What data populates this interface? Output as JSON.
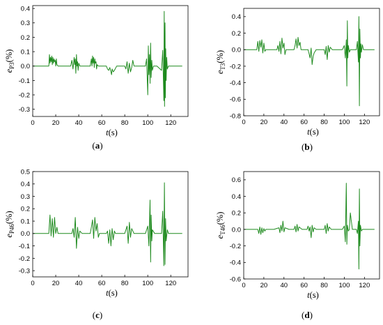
{
  "chart_data": [
    {
      "panel": "a",
      "type": "line",
      "caption": "(a)",
      "ylabel_main": "e",
      "ylabel_sub": "P3",
      "ylabel_unit": "(%)",
      "xlabel_main": "t",
      "xlabel_unit": "(s)",
      "xlim": [
        0,
        135
      ],
      "ylim": [
        -0.35,
        0.42
      ],
      "xticks": [
        0,
        20,
        40,
        60,
        80,
        100,
        120
      ],
      "yticks": [
        -0.3,
        -0.2,
        -0.1,
        0.0,
        0.1,
        0.2,
        0.3,
        0.4
      ],
      "ytick_labels": [
        "-0.3",
        "-0.2",
        "-0.1",
        "0.0",
        "0.1",
        "0.2",
        "0.3",
        "0.4"
      ],
      "color": "#1e8a1e",
      "x": [
        0,
        14,
        14.5,
        15,
        15.5,
        16,
        16.5,
        17,
        17.5,
        18,
        18.5,
        19,
        19.5,
        20,
        20.5,
        21,
        22,
        23,
        26,
        27,
        30,
        33,
        34,
        35,
        36,
        36.5,
        37,
        37.5,
        38,
        38.5,
        39,
        39.5,
        40,
        41,
        45,
        50,
        51,
        51.5,
        52,
        52.5,
        53,
        53.5,
        54,
        54.5,
        55,
        55.5,
        56,
        57,
        60,
        64,
        65,
        66,
        67,
        68,
        68.5,
        69,
        70,
        71,
        73,
        80,
        81,
        82,
        83,
        84,
        85,
        86,
        87,
        88,
        90,
        98,
        99,
        100,
        100.5,
        101,
        101.5,
        102,
        102.5,
        103,
        103.5,
        104,
        105,
        108,
        112,
        113,
        114,
        114.3,
        114.6,
        115,
        115.3,
        115.6,
        116,
        116.5,
        117,
        118,
        120,
        130
      ],
      "y": [
        0,
        0,
        0.08,
        0.02,
        0.06,
        0.03,
        0.07,
        0.01,
        0.06,
        0.02,
        0.05,
        0.03,
        0.04,
        0.0,
        0.05,
        0.01,
        0.0,
        0.0,
        0.0,
        0.0,
        0.0,
        0.0,
        0.04,
        -0.02,
        0.06,
        0.01,
        0.05,
        -0.05,
        0.08,
        0.0,
        0.03,
        -0.03,
        0.02,
        0.0,
        0.0,
        0.0,
        0.05,
        0.0,
        0.07,
        0.02,
        0.06,
        -0.01,
        0.05,
        0.02,
        0.03,
        -0.02,
        0.01,
        0.0,
        0.0,
        0.0,
        -0.02,
        -0.03,
        -0.01,
        -0.04,
        -0.06,
        -0.02,
        -0.04,
        -0.03,
        0.0,
        0.0,
        -0.02,
        0.03,
        -0.05,
        0.02,
        -0.04,
        -0.01,
        0.04,
        0.0,
        0.0,
        0.0,
        0.05,
        -0.2,
        0.14,
        -0.06,
        0.08,
        -0.12,
        0.16,
        -0.08,
        0.04,
        -0.03,
        0.0,
        0.0,
        -0.03,
        0.11,
        -0.24,
        0.38,
        -0.28,
        0.3,
        -0.22,
        0.12,
        -0.1,
        0.06,
        -0.02,
        0.0,
        0.0,
        0.0
      ]
    },
    {
      "panel": "b",
      "type": "line",
      "caption": "(b)",
      "ylabel_main": "e",
      "ylabel_sub": "T3",
      "ylabel_unit": "(%)",
      "xlabel_main": "t",
      "xlabel_unit": "(s)",
      "xlim": [
        0,
        135
      ],
      "ylim": [
        -0.8,
        0.5
      ],
      "xticks": [
        0,
        20,
        40,
        60,
        80,
        100,
        120
      ],
      "yticks": [
        -0.8,
        -0.6,
        -0.4,
        -0.2,
        0.0,
        0.2,
        0.4
      ],
      "ytick_labels": [
        "-0.8",
        "-0.6",
        "-0.4",
        "-0.2",
        "0.0",
        "0.2",
        "0.4"
      ],
      "color": "#1e8a1e",
      "x": [
        0,
        13,
        14,
        15,
        16,
        17,
        18,
        19,
        20,
        21,
        22,
        25,
        30,
        33,
        34,
        35,
        36,
        37,
        38,
        39,
        40,
        41,
        42,
        45,
        50,
        51,
        52,
        53,
        54,
        55,
        56,
        57,
        58,
        60,
        64,
        65,
        66,
        67,
        68,
        69,
        70,
        72,
        80,
        81,
        82,
        83,
        84,
        85,
        86,
        88,
        98,
        100,
        101,
        102,
        102.5,
        103,
        103.5,
        104,
        105,
        106,
        108,
        112,
        113,
        114,
        114.5,
        115,
        115.5,
        116,
        116.5,
        117,
        118,
        119,
        120,
        130
      ],
      "y": [
        0,
        0,
        0.1,
        -0.02,
        0.11,
        0.03,
        0.12,
        -0.04,
        0.08,
        -0.02,
        0.0,
        0.0,
        0.0,
        0.0,
        0.05,
        -0.02,
        0.1,
        -0.05,
        0.14,
        0.02,
        0.08,
        -0.06,
        0.0,
        0.0,
        0.0,
        0.05,
        0.13,
        0.02,
        0.15,
        0.05,
        0.09,
        0.0,
        0.0,
        0.0,
        0.0,
        -0.05,
        -0.1,
        0.02,
        -0.18,
        -0.08,
        -0.04,
        0.0,
        0.0,
        -0.06,
        0.04,
        -0.12,
        0.05,
        -0.03,
        0.03,
        0.0,
        0.0,
        0.05,
        -0.1,
        0.12,
        -0.44,
        0.35,
        -0.1,
        0.05,
        -0.03,
        0.0,
        0.0,
        0.0,
        0.1,
        -0.15,
        0.4,
        -0.68,
        0.25,
        -0.1,
        0.07,
        -0.03,
        0.06,
        0.0,
        0.0,
        0.0
      ]
    },
    {
      "panel": "c",
      "type": "line",
      "caption": "(c)",
      "ylabel_main": "e",
      "ylabel_sub": "P46",
      "ylabel_unit": "(%)",
      "xlabel_main": "t",
      "xlabel_unit": "(s)",
      "xlim": [
        0,
        135
      ],
      "ylim": [
        -0.35,
        0.5
      ],
      "xticks": [
        0,
        20,
        40,
        60,
        80,
        100,
        120
      ],
      "yticks": [
        -0.3,
        -0.2,
        -0.1,
        0.0,
        0.1,
        0.2,
        0.3,
        0.4,
        0.5
      ],
      "ytick_labels": [
        "-0.3",
        "-0.2",
        "-0.1",
        "0.0",
        "0.1",
        "0.2",
        "0.3",
        "0.4",
        "0.5"
      ],
      "color": "#1e8a1e",
      "x": [
        0,
        14,
        15,
        16,
        17,
        18,
        19,
        20,
        21,
        22,
        24,
        30,
        34,
        35,
        36,
        37,
        38,
        39,
        40,
        41,
        43,
        50,
        51,
        52,
        53,
        54,
        55,
        56,
        57,
        58,
        60,
        64,
        65,
        66,
        67,
        68,
        69,
        70,
        71,
        72,
        80,
        82,
        83,
        84,
        85,
        86,
        88,
        98,
        100,
        101,
        102,
        102.5,
        103,
        103.5,
        104,
        106,
        112,
        113,
        114,
        114.5,
        115,
        115.5,
        116,
        117,
        118,
        120,
        130
      ],
      "y": [
        0,
        0,
        0.15,
        -0.02,
        0.12,
        -0.03,
        0.13,
        0.0,
        0.05,
        0.0,
        0.0,
        0.0,
        0.0,
        0.04,
        -0.03,
        0.13,
        -0.12,
        0.05,
        -0.04,
        0.02,
        0.0,
        0.0,
        0.05,
        0.11,
        -0.04,
        0.13,
        0.02,
        0.08,
        -0.03,
        0.0,
        0.0,
        0.0,
        0.02,
        -0.08,
        0.03,
        -0.1,
        0.04,
        -0.05,
        0.02,
        0.0,
        0.0,
        0.06,
        -0.08,
        0.09,
        -0.03,
        0.04,
        0.0,
        0.0,
        0.06,
        -0.1,
        0.27,
        -0.23,
        0.15,
        -0.06,
        0.03,
        0.0,
        0.0,
        0.18,
        -0.26,
        0.41,
        -0.25,
        0.12,
        -0.06,
        0.03,
        0.0,
        0.0,
        0.0
      ]
    },
    {
      "panel": "d",
      "type": "line",
      "caption": "(d)",
      "ylabel_main": "e",
      "ylabel_sub": "T46",
      "ylabel_unit": "(%)",
      "xlabel_main": "t",
      "xlabel_unit": "(s)",
      "xlim": [
        0,
        135
      ],
      "ylim": [
        -0.6,
        0.7
      ],
      "xticks": [
        0,
        20,
        40,
        60,
        80,
        100,
        120
      ],
      "yticks": [
        -0.6,
        -0.4,
        -0.2,
        0.0,
        0.2,
        0.4,
        0.6
      ],
      "ytick_labels": [
        "-0.6",
        "-0.4",
        "-0.2",
        "0.0",
        "0.2",
        "0.4",
        "0.6"
      ],
      "color": "#1e8a1e",
      "x": [
        0,
        14,
        15,
        16,
        17,
        18,
        19,
        20,
        21,
        22,
        25,
        30,
        35,
        36,
        37,
        38,
        39,
        40,
        41,
        45,
        50,
        51,
        52,
        53,
        54,
        55,
        58,
        63,
        64,
        65,
        66,
        67,
        68,
        69,
        70,
        72,
        80,
        81,
        82,
        83,
        84,
        85,
        87,
        98,
        100,
        101,
        102,
        102.5,
        103,
        104,
        105,
        106,
        108,
        112,
        113,
        114,
        114.5,
        115,
        115.5,
        116,
        117,
        118,
        120,
        130
      ],
      "y": [
        0,
        0,
        -0.05,
        0.03,
        -0.06,
        0.02,
        -0.04,
        0.01,
        -0.02,
        0.0,
        0.0,
        0.0,
        0.02,
        -0.04,
        0.05,
        -0.02,
        0.1,
        -0.03,
        0.02,
        0.0,
        0.0,
        0.04,
        -0.03,
        0.06,
        -0.02,
        0.03,
        0.0,
        0.0,
        0.04,
        -0.02,
        0.03,
        -0.1,
        0.05,
        -0.03,
        0.02,
        0.0,
        0.0,
        0.05,
        -0.05,
        0.07,
        -0.02,
        0.03,
        0.0,
        0.0,
        0.04,
        -0.15,
        0.56,
        -0.18,
        0.05,
        -0.02,
        0.0,
        0.2,
        0.0,
        0.0,
        -0.05,
        0.1,
        -0.48,
        0.49,
        -0.2,
        0.05,
        -0.02,
        0.0,
        0.0,
        0.0
      ]
    }
  ]
}
